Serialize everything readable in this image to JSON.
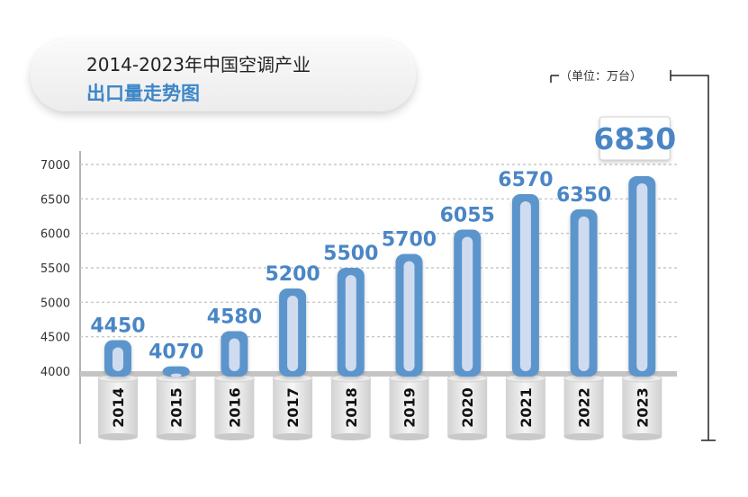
{
  "title": {
    "line1": "2014-2023年中国空调产业",
    "line2": "出口量走势图"
  },
  "unit": "（单位：万台）",
  "colors": {
    "bar": "#5b95cc",
    "bar_inner": "#cfdcf0",
    "label": "#4a86c5",
    "axis_text": "#333333",
    "grid": "#c8c8c8"
  },
  "chart_data": {
    "type": "bar",
    "title": "2014-2023年中国空调产业出口量走势图",
    "unit": "万台",
    "categories": [
      "2014",
      "2015",
      "2016",
      "2017",
      "2018",
      "2019",
      "2020",
      "2021",
      "2022",
      "2023"
    ],
    "values": [
      4450,
      4070,
      4580,
      5200,
      5500,
      5700,
      6055,
      6570,
      6350,
      6830
    ],
    "yticks": [
      4000,
      4500,
      5000,
      5500,
      6000,
      6500,
      7000
    ],
    "ylim": [
      4000,
      7000
    ],
    "highlight": "2023",
    "xlabel": "",
    "ylabel": ""
  }
}
